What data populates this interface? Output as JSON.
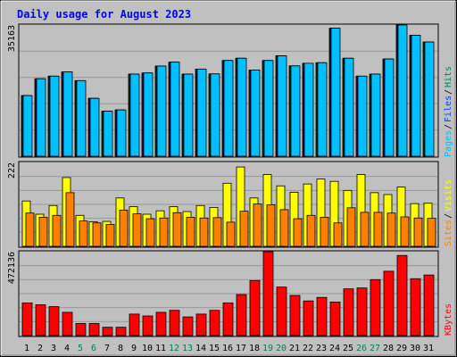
{
  "title": "Daily usage for August 2023",
  "colors": {
    "background": "#c0c0c0",
    "title": "#0000ff",
    "grid": "#999999",
    "hits": "#00805c",
    "files": "#0040ff",
    "pages": "#00c0ff",
    "visits": "#ffff00",
    "sites": "#ff8000",
    "kbytes": "#ff0000",
    "weekday_label": "#000000",
    "weekend_label": "#00805c"
  },
  "chart_data": [
    {
      "type": "bar",
      "panel": "hits-files-pages",
      "y_max_label": "35163",
      "y_max": 35163,
      "axis_labels": [
        "Pages",
        "Files",
        "Hits"
      ],
      "categories": [
        "1",
        "2",
        "3",
        "4",
        "5",
        "6",
        "7",
        "8",
        "9",
        "10",
        "11",
        "12",
        "13",
        "14",
        "15",
        "16",
        "17",
        "18",
        "19",
        "20",
        "21",
        "22",
        "23",
        "24",
        "25",
        "26",
        "27",
        "28",
        "29",
        "30",
        "31"
      ],
      "series": [
        {
          "name": "Hits",
          "values": [
            16250,
            20750,
            21450,
            22600,
            20250,
            15500,
            12050,
            12400,
            22000,
            22300,
            24150,
            25200,
            22000,
            23350,
            22050,
            25650,
            26250,
            23100,
            25650,
            26900,
            24200,
            24900,
            25050,
            34300,
            26250,
            21450,
            22000,
            26050,
            35163,
            32400,
            30600
          ]
        },
        {
          "name": "Files",
          "values": [
            16250,
            20750,
            21450,
            22600,
            20250,
            15500,
            12050,
            12400,
            22000,
            22300,
            24150,
            25200,
            22000,
            23350,
            22050,
            25650,
            26250,
            23100,
            25650,
            26900,
            24200,
            24900,
            25050,
            34300,
            26250,
            21450,
            22000,
            26050,
            35163,
            32400,
            30600
          ]
        },
        {
          "name": "Pages",
          "values": [
            16250,
            20750,
            21450,
            22600,
            20250,
            15500,
            12050,
            12400,
            22000,
            22300,
            24150,
            25200,
            22000,
            23350,
            22050,
            25650,
            26250,
            23100,
            25650,
            26900,
            24200,
            24900,
            25050,
            34300,
            26250,
            21450,
            22000,
            26050,
            35163,
            32400,
            30600
          ]
        }
      ]
    },
    {
      "type": "bar",
      "panel": "visits-sites",
      "y_max_label": "222",
      "y_max": 222,
      "axis_labels": [
        "Sites",
        "Visits"
      ],
      "categories": [
        "1",
        "2",
        "3",
        "4",
        "5",
        "6",
        "7",
        "8",
        "9",
        "10",
        "11",
        "12",
        "13",
        "14",
        "15",
        "16",
        "17",
        "18",
        "19",
        "20",
        "21",
        "22",
        "23",
        "24",
        "25",
        "26",
        "27",
        "28",
        "29",
        "30",
        "31"
      ],
      "series": [
        {
          "name": "Visits",
          "values": [
            120,
            85,
            108,
            182,
            82,
            65,
            66,
            128,
            105,
            85,
            94,
            105,
            92,
            108,
            103,
            167,
            210,
            128,
            190,
            160,
            143,
            165,
            178,
            172,
            148,
            190,
            142,
            137,
            157,
            113,
            114
          ]
        },
        {
          "name": "Sites",
          "values": [
            88,
            77,
            82,
            142,
            67,
            62,
            58,
            96,
            86,
            73,
            75,
            89,
            77,
            75,
            76,
            64,
            93,
            112,
            110,
            97,
            73,
            82,
            77,
            62,
            102,
            90,
            90,
            88,
            78,
            75,
            74
          ]
        }
      ]
    },
    {
      "type": "bar",
      "panel": "kbytes",
      "y_max_label": "472136",
      "y_max": 472136,
      "axis_labels": [
        "KBytes"
      ],
      "categories": [
        "1",
        "2",
        "3",
        "4",
        "5",
        "6",
        "7",
        "8",
        "9",
        "10",
        "11",
        "12",
        "13",
        "14",
        "15",
        "16",
        "17",
        "18",
        "19",
        "20",
        "21",
        "22",
        "23",
        "24",
        "25",
        "26",
        "27",
        "28",
        "29",
        "30",
        "31"
      ],
      "series": [
        {
          "name": "KBytes",
          "values": [
            184000,
            173500,
            163000,
            131000,
            68000,
            68000,
            47000,
            47000,
            121000,
            110500,
            131000,
            142000,
            105000,
            121000,
            142000,
            184000,
            231000,
            310000,
            472136,
            273000,
            226000,
            195000,
            215000,
            189000,
            263000,
            268000,
            315000,
            362000,
            451000,
            320000,
            341000
          ]
        }
      ]
    }
  ],
  "x_labels": [
    {
      "day": "1",
      "weekend": false
    },
    {
      "day": "2",
      "weekend": false
    },
    {
      "day": "3",
      "weekend": false
    },
    {
      "day": "4",
      "weekend": false
    },
    {
      "day": "5",
      "weekend": true
    },
    {
      "day": "6",
      "weekend": true
    },
    {
      "day": "7",
      "weekend": false
    },
    {
      "day": "8",
      "weekend": false
    },
    {
      "day": "9",
      "weekend": false
    },
    {
      "day": "10",
      "weekend": false
    },
    {
      "day": "11",
      "weekend": false
    },
    {
      "day": "12",
      "weekend": true
    },
    {
      "day": "13",
      "weekend": true
    },
    {
      "day": "14",
      "weekend": false
    },
    {
      "day": "15",
      "weekend": false
    },
    {
      "day": "16",
      "weekend": false
    },
    {
      "day": "17",
      "weekend": false
    },
    {
      "day": "18",
      "weekend": false
    },
    {
      "day": "19",
      "weekend": true
    },
    {
      "day": "20",
      "weekend": true
    },
    {
      "day": "21",
      "weekend": false
    },
    {
      "day": "22",
      "weekend": false
    },
    {
      "day": "23",
      "weekend": false
    },
    {
      "day": "24",
      "weekend": false
    },
    {
      "day": "25",
      "weekend": false
    },
    {
      "day": "26",
      "weekend": true
    },
    {
      "day": "27",
      "weekend": true
    },
    {
      "day": "28",
      "weekend": false
    },
    {
      "day": "29",
      "weekend": false
    },
    {
      "day": "30",
      "weekend": false
    },
    {
      "day": "31",
      "weekend": false
    }
  ]
}
